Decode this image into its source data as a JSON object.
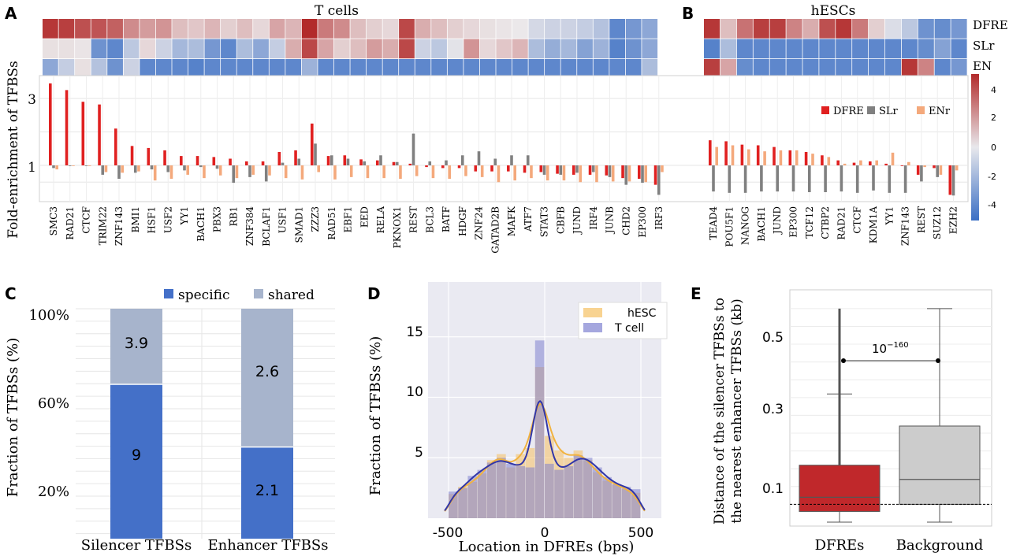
{
  "panels": {
    "A": "A",
    "B": "B",
    "C": "C",
    "D": "D",
    "E": "E"
  },
  "panel_A": {
    "heatmap_title": "T cells",
    "tfs": [
      "SMC3",
      "RAD21",
      "CTCF",
      "TRIM22",
      "ZNF143",
      "BMI1",
      "HSF1",
      "USF2",
      "YY1",
      "BACH1",
      "PBX3",
      "RB1",
      "ZNF384",
      "BCLAF1",
      "USF1",
      "SMAD1",
      "ZZZ3",
      "RAD51",
      "EBF1",
      "EED",
      "RELA",
      "PKNOX1",
      "REST",
      "BCL3",
      "BATF",
      "HDGF",
      "ZNF24",
      "GATAD2B",
      "MAFK",
      "ATF7",
      "STAT3",
      "CBFB",
      "JUND",
      "IRF4",
      "JUNB",
      "CHD2",
      "EP300",
      "IRF3"
    ]
  },
  "panel_B": {
    "heatmap_title": "hESCs",
    "tfs": [
      "TEAD4",
      "POU5F1",
      "NANOG",
      "BACH1",
      "JUND",
      "EP300",
      "TCF12",
      "CTBP2",
      "RAD21",
      "CTCF",
      "KDM1A",
      "YY1",
      "ZNF143",
      "REST",
      "SUZ12",
      "EZH2"
    ],
    "row_labels": [
      "DFRE",
      "SLr",
      "EN"
    ]
  },
  "colorbar": {
    "ticks": [
      "4",
      "2",
      "0",
      "-2",
      "-4"
    ],
    "colors": [
      "#3b6fc4",
      "#e8e8ec",
      "#b22a2a"
    ]
  },
  "panel_AB_bars": {
    "ylabel": "Fold-enrichment of TFBSs",
    "yticks": [
      "3",
      "1"
    ],
    "legend": [
      "DFRE",
      "SLr",
      "ENr"
    ],
    "series_colors": [
      "#e02020",
      "#808080",
      "#f4a97c"
    ]
  },
  "panel_C": {
    "ylabel": "Fraction of TFBSs (%)",
    "yticks": [
      "100%",
      "60%",
      "20%"
    ],
    "legend": [
      "specific",
      "shared"
    ],
    "colors": [
      "#4470c8",
      "#a7b4cc"
    ],
    "categories": [
      "Silencer TFBSs",
      "Enhancer TFBSs"
    ],
    "labels": {
      "silencer_shared": "3.9",
      "silencer_specific": "9",
      "enhancer_shared": "2.6",
      "enhancer_specific": "2.1"
    }
  },
  "panel_D": {
    "ylabel": "Fraction of TFBSs (%)",
    "xlabel": "Location in DFREs (bps)",
    "yticks": [
      "15",
      "10",
      "5"
    ],
    "xticks": [
      "-500",
      "0",
      "500"
    ],
    "legend": [
      "hESC",
      "T cell"
    ],
    "colors": [
      "#f5c062",
      "#7f81d0"
    ]
  },
  "panel_E": {
    "ylabel_line1": "Distance of the silencer TFBSs to",
    "ylabel_line2": "the nearest enhancer TFBSs (kb)",
    "yticks": [
      "0.5",
      "0.3",
      "0.1"
    ],
    "categories": [
      "DFREs",
      "Background"
    ],
    "pvalue_base": "10",
    "pvalue_exp": "−160",
    "colors": [
      "#c0282b",
      "#cccccc"
    ]
  },
  "chart_data": [
    {
      "type": "heatmap",
      "title": "T cells",
      "rows": [
        "DFRE",
        "SLr",
        "EN"
      ],
      "columns": [
        "SMC3",
        "RAD21",
        "CTCF",
        "TRIM22",
        "ZNF143",
        "BMI1",
        "HSF1",
        "USF2",
        "YY1",
        "BACH1",
        "PBX3",
        "RB1",
        "ZNF384",
        "BCLAF1",
        "USF1",
        "SMAD1",
        "ZZZ3",
        "RAD51",
        "EBF1",
        "EED",
        "RELA",
        "PKNOX1",
        "REST",
        "BCL3",
        "BATF",
        "HDGF",
        "ZNF24",
        "GATAD2B",
        "MAFK",
        "ATF7",
        "STAT3",
        "CBFB",
        "JUND",
        "IRF4",
        "JUNB",
        "CHD2",
        "EP300",
        "IRF3"
      ],
      "values": [
        [
          4.2,
          4.0,
          3.6,
          3.5,
          3.2,
          2.2,
          1.8,
          2.0,
          1.0,
          0.8,
          1.2,
          0.6,
          1.0,
          0.4,
          1.6,
          1.2,
          4.5,
          2.6,
          2.2,
          1.0,
          0.6,
          0.4,
          3.8,
          1.4,
          1.0,
          0.6,
          0.4,
          0.2,
          0.1,
          0.0,
          -0.6,
          -0.8,
          -0.8,
          -1.0,
          -1.4,
          -3.6,
          -3.0,
          -2.4
        ],
        [
          0.2,
          0.2,
          0.1,
          -3.2,
          -3.6,
          -1.2,
          0.4,
          -0.8,
          -1.8,
          -1.6,
          -3.0,
          -3.6,
          -1.6,
          -2.4,
          -1.0,
          1.4,
          3.8,
          1.6,
          0.6,
          1.0,
          1.8,
          1.4,
          3.8,
          -0.8,
          -1.2,
          -0.2,
          2.0,
          0.4,
          0.8,
          1.2,
          -1.6,
          -2.2,
          -1.8,
          -2.6,
          -2.0,
          -3.8,
          -3.2,
          -2.4
        ],
        [
          -2.4,
          -1.0,
          0.2,
          -1.4,
          -3.2,
          -0.8,
          -3.6,
          -3.6,
          -3.6,
          -3.8,
          -3.6,
          -3.6,
          -3.6,
          -3.6,
          -3.6,
          -3.6,
          -2.0,
          -3.6,
          -3.6,
          -3.6,
          -3.6,
          -3.6,
          -3.6,
          -3.6,
          -3.6,
          -3.6,
          -3.6,
          -3.6,
          -3.6,
          -3.6,
          -3.6,
          -3.6,
          -3.6,
          -3.6,
          -3.6,
          -3.6,
          -3.6,
          -1.6
        ]
      ],
      "range": [
        -4.5,
        4.5
      ]
    },
    {
      "type": "heatmap",
      "title": "hESCs",
      "rows": [
        "DFRE",
        "SLr",
        "EN"
      ],
      "columns": [
        "TEAD4",
        "POU5F1",
        "NANOG",
        "BACH1",
        "JUND",
        "EP300",
        "TCF12",
        "CTBP2",
        "RAD21",
        "CTCF",
        "KDM1A",
        "YY1",
        "ZNF143",
        "REST",
        "SUZ12",
        "EZH2"
      ],
      "values": [
        [
          4.2,
          1.0,
          2.8,
          4.0,
          4.0,
          2.4,
          1.4,
          3.6,
          4.2,
          2.6,
          0.6,
          -0.4,
          -1.2,
          -3.2,
          -3.4,
          -3.0
        ],
        [
          -3.8,
          -1.6,
          -3.6,
          -3.6,
          -3.6,
          -3.6,
          -3.6,
          -3.6,
          -3.6,
          -3.6,
          -3.6,
          -3.6,
          -3.6,
          -3.4,
          -2.6,
          -3.6
        ],
        [
          4.0,
          1.6,
          -3.4,
          -3.6,
          -3.6,
          -3.6,
          -3.6,
          -3.6,
          -3.6,
          -3.6,
          -3.6,
          -3.6,
          4.2,
          2.4,
          -3.6,
          -3.0
        ]
      ],
      "range": [
        -4.5,
        4.5
      ]
    },
    {
      "type": "bar",
      "ylabel": "Fold-enrichment of TFBSs",
      "categories": [
        "SMC3",
        "RAD21",
        "CTCF",
        "TRIM22",
        "ZNF143",
        "BMI1",
        "HSF1",
        "USF2",
        "YY1",
        "BACH1",
        "PBX3",
        "RB1",
        "ZNF384",
        "BCLAF1",
        "USF1",
        "SMAD1",
        "ZZZ3",
        "RAD51",
        "EBF1",
        "EED",
        "RELA",
        "PKNOX1",
        "REST",
        "BCL3",
        "BATF",
        "HDGF",
        "ZNF24",
        "GATAD2B",
        "MAFK",
        "ATF7",
        "STAT3",
        "CBFB",
        "JUND",
        "IRF4",
        "JUNB",
        "CHD2",
        "EP300",
        "IRF3",
        "TEAD4",
        "POU5F1",
        "NANOG",
        "BACH1",
        "JUND",
        "EP300",
        "TCF12",
        "CTBP2",
        "RAD21",
        "CTCF",
        "KDM1A",
        "YY1",
        "ZNF143",
        "REST",
        "SUZ12",
        "EZH2"
      ],
      "series": [
        {
          "name": "DFRE",
          "values": [
            3.45,
            3.25,
            2.9,
            2.82,
            2.1,
            1.58,
            1.52,
            1.45,
            1.28,
            1.28,
            1.25,
            1.2,
            1.12,
            1.12,
            1.4,
            1.45,
            2.25,
            1.28,
            1.3,
            1.18,
            1.15,
            1.1,
            1.05,
            0.95,
            0.92,
            0.92,
            0.82,
            0.82,
            0.82,
            0.78,
            0.8,
            0.75,
            0.72,
            0.72,
            0.7,
            0.62,
            0.6,
            0.42,
            1.75,
            1.72,
            1.62,
            1.6,
            1.55,
            1.45,
            1.4,
            1.3,
            1.15,
            1.08,
            1.12,
            1.05,
            0.98,
            0.72,
            0.92,
            0.12
          ]
        },
        {
          "name": "SLr",
          "values": [
            0.92,
            0.98,
            0.98,
            0.72,
            0.6,
            0.78,
            0.88,
            0.8,
            0.85,
            0.95,
            0.9,
            0.48,
            0.65,
            0.52,
            1.08,
            1.2,
            1.65,
            1.3,
            1.2,
            1.12,
            1.3,
            1.1,
            1.95,
            1.12,
            1.15,
            1.3,
            1.42,
            1.2,
            1.3,
            1.3,
            0.72,
            0.72,
            0.78,
            0.8,
            0.65,
            0.42,
            0.48,
            0.12,
            0.22,
            0.18,
            0.18,
            0.22,
            0.22,
            0.22,
            0.2,
            0.2,
            0.22,
            0.18,
            0.25,
            0.18,
            0.18,
            0.52,
            0.65,
            0.1
          ]
        },
        {
          "name": "ENr",
          "values": [
            0.88,
            0.98,
            0.98,
            0.8,
            0.78,
            0.82,
            0.55,
            0.6,
            0.72,
            0.62,
            0.7,
            0.62,
            0.72,
            0.7,
            0.62,
            0.58,
            0.8,
            0.58,
            0.65,
            0.62,
            0.62,
            0.6,
            0.68,
            0.62,
            0.6,
            0.68,
            0.65,
            0.5,
            0.55,
            0.62,
            0.55,
            0.55,
            0.5,
            0.5,
            0.52,
            0.52,
            0.5,
            0.8,
            1.55,
            1.6,
            1.48,
            1.42,
            1.45,
            1.45,
            1.35,
            1.25,
            1.05,
            1.15,
            1.15,
            1.38,
            1.1,
            0.95,
            0.72,
            0.85
          ]
        }
      ]
    },
    {
      "type": "bar",
      "ylabel": "Fraction of TFBSs (%)",
      "categories": [
        "Silencer TFBSs",
        "Enhancer TFBSs"
      ],
      "series": [
        {
          "name": "specific",
          "values": [
            9,
            2.1
          ]
        },
        {
          "name": "shared",
          "values": [
            3.9,
            2.6
          ]
        }
      ]
    },
    {
      "type": "bar",
      "xlabel": "Location in DFREs (bps)",
      "ylabel": "Fraction of TFBSs (%)",
      "x": [
        -475,
        -425,
        -375,
        -325,
        -275,
        -225,
        -175,
        -125,
        -75,
        -25,
        25,
        75,
        125,
        175,
        225,
        275,
        325,
        375,
        425,
        475
      ],
      "series": [
        {
          "name": "hESC",
          "values": [
            2.0,
            2.6,
            3.0,
            3.7,
            4.8,
            5.3,
            4.2,
            5.3,
            5.8,
            12.5,
            6.8,
            5.6,
            5.0,
            5.6,
            4.8,
            3.8,
            3.1,
            2.8,
            2.4,
            2.1
          ]
        },
        {
          "name": "T cell",
          "values": [
            2.2,
            2.5,
            3.5,
            4.0,
            4.6,
            5.0,
            4.5,
            4.3,
            4.2,
            14.7,
            4.5,
            4.0,
            4.3,
            5.2,
            5.0,
            4.2,
            3.4,
            2.8,
            2.6,
            2.4
          ]
        }
      ],
      "xlim": [
        -600,
        600
      ],
      "ylim": [
        0,
        17
      ]
    },
    {
      "type": "box",
      "ylabel": "Distance of the silencer TFBSs to the nearest enhancer TFBSs (kb)",
      "categories": [
        "DFREs",
        "Background"
      ],
      "boxes": [
        {
          "name": "DFREs",
          "min": 0.0,
          "q1": 0.03,
          "median": 0.07,
          "q3": 0.16,
          "whisker_high": 0.36,
          "max": 0.6
        },
        {
          "name": "Background",
          "min": 0.0,
          "q1": 0.05,
          "median": 0.12,
          "q3": 0.27,
          "whisker_high": 0.6,
          "max": 0.6
        }
      ],
      "annotation": "10^-160"
    }
  ]
}
